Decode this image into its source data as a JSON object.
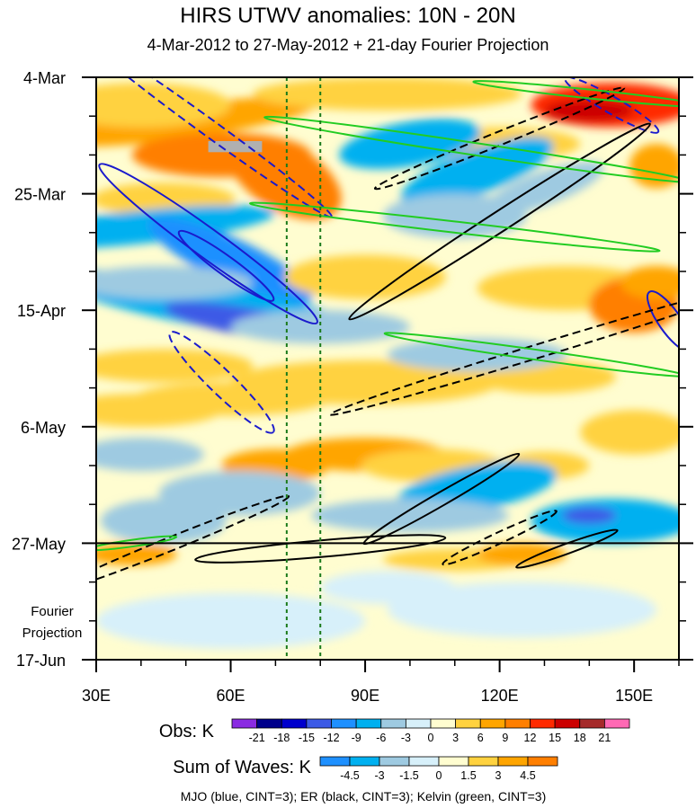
{
  "chart_data": {
    "type": "heatmap",
    "title": "HIRS UTWV anomalies: 10N - 20N",
    "subtitle": "4-Mar-2012 to 27-May-2012 + 21-day Fourier Projection",
    "x_ticks": [
      "30E",
      "60E",
      "90E",
      "120E",
      "150E"
    ],
    "x_tick_values": [
      30,
      60,
      90,
      120,
      150
    ],
    "xlim": [
      30,
      160
    ],
    "y_ticks": [
      "4-Mar",
      "25-Mar",
      "15-Apr",
      "6-May",
      "27-May",
      "17-Jun"
    ],
    "y_tick_days": [
      0,
      21,
      42,
      63,
      84,
      105
    ],
    "ylim_days": [
      0,
      105
    ],
    "projection_label": [
      "Fourier",
      "Projection"
    ],
    "projection_start_day": 84,
    "mjo_reference_longitudes": [
      72.5,
      80
    ],
    "obs_colorbar": {
      "title": "Obs: K",
      "levels": [
        "-21",
        "-18",
        "-15",
        "-12",
        "-9",
        "-6",
        "-3",
        "0",
        "3",
        "6",
        "9",
        "12",
        "15",
        "18",
        "21"
      ],
      "colors": [
        "#8a2be2",
        "#00008b",
        "#0000cd",
        "#3c5ae6",
        "#1e90ff",
        "#00b0f0",
        "#9ecae1",
        "#d7f0fa",
        "#fffdd0",
        "#ffd23f",
        "#ffa500",
        "#ff7f00",
        "#ff2a00",
        "#cc0000",
        "#a52a2a",
        "#ff69b4"
      ]
    },
    "waves_colorbar": {
      "title": "Sum of Waves: K",
      "levels": [
        "-4.5",
        "-3",
        "-1.5",
        "0",
        "1.5",
        "3",
        "4.5"
      ],
      "colors": [
        "#1e90ff",
        "#00b0f0",
        "#9ecae1",
        "#d7f0fa",
        "#fffdd0",
        "#ffd23f",
        "#ffa500",
        "#ff7f00"
      ]
    },
    "legend_text": "MJO (blue, CINT=3); ER (black, CINT=3); Kelvin (green, CINT=3)",
    "wave_colors": {
      "MJO": "#1a1acc",
      "ER": "#000000",
      "Kelvin": "#22cc22"
    }
  }
}
